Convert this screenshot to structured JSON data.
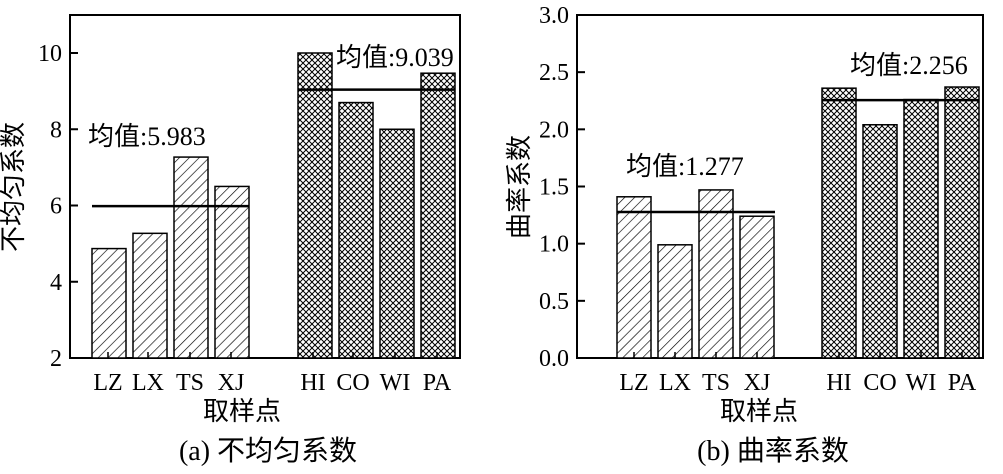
{
  "chart_data": [
    {
      "type": "bar",
      "caption": "(a) 不均匀系数",
      "xlabel": "取样点",
      "ylabel": "不均匀系数",
      "ylim": [
        2,
        11
      ],
      "yticks": [
        2,
        4,
        6,
        8,
        10
      ],
      "grid": false,
      "groups": [
        {
          "pattern": "hatch",
          "categories": [
            "LZ",
            "LX",
            "TS",
            "XJ"
          ],
          "values": [
            4.87,
            5.27,
            7.27,
            6.5
          ],
          "mean": 5.983,
          "mean_label": "均值:5.983"
        },
        {
          "pattern": "crosshatch",
          "categories": [
            "HI",
            "CO",
            "WI",
            "PA"
          ],
          "values": [
            10.0,
            8.7,
            8.0,
            9.47
          ],
          "mean": 9.039,
          "mean_label": "均值:9.039"
        }
      ]
    },
    {
      "type": "bar",
      "caption": "(b) 曲率系数",
      "xlabel": "取样点",
      "ylabel": "曲率系数",
      "ylim": [
        0,
        3
      ],
      "yticks": [
        "0.0",
        "0.5",
        "1.0",
        "1.5",
        "2.0",
        "2.5",
        "3.0"
      ],
      "grid": false,
      "groups": [
        {
          "pattern": "hatch",
          "categories": [
            "LZ",
            "LX",
            "TS",
            "XJ"
          ],
          "values": [
            1.41,
            0.99,
            1.47,
            1.24
          ],
          "mean": 1.277,
          "mean_label": "均值:1.277"
        },
        {
          "pattern": "crosshatch",
          "categories": [
            "HI",
            "CO",
            "WI",
            "PA"
          ],
          "values": [
            2.36,
            2.04,
            2.26,
            2.37
          ],
          "mean": 2.256,
          "mean_label": "均值:2.256"
        }
      ]
    }
  ]
}
